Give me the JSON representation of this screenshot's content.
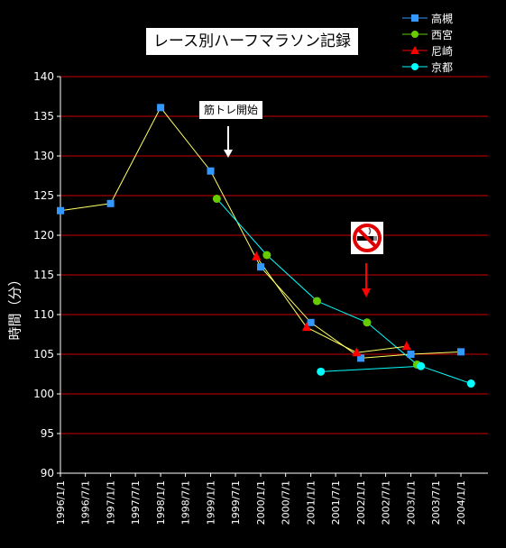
{
  "chart_data": {
    "type": "line",
    "title": "レース別ハーフマラソン記録",
    "ylabel": "時間（分）",
    "xlabel": "",
    "ylim": [
      90,
      140
    ],
    "yticks": [
      90,
      95,
      100,
      105,
      110,
      115,
      120,
      125,
      130,
      135,
      140
    ],
    "x_tick_labels": [
      "1996/1/1",
      "1996/7/1",
      "1997/1/1",
      "1997/7/1",
      "1998/1/1",
      "1998/7/1",
      "1999/1/1",
      "1999/7/1",
      "2000/1/1",
      "2000/7/1",
      "2001/1/1",
      "2001/7/1",
      "2002/1/1",
      "2002/7/1",
      "2003/1/1",
      "2003/7/1",
      "2004/1/1"
    ],
    "grid": true,
    "legend_position": "top-right",
    "series": [
      {
        "name": "高槻",
        "color": "#3399ff",
        "line_color": "#ffff66",
        "marker": "square",
        "x": [
          "1996/1/1",
          "1997/1/1",
          "1998/1/1",
          "1999/1/1",
          "2000/1/1",
          "2001/1/1",
          "2002/1/1",
          "2003/1/1",
          "2004/1/1"
        ],
        "values": [
          123.1,
          124.0,
          136.1,
          128.1,
          116.0,
          109.0,
          104.5,
          105.0,
          105.3
        ]
      },
      {
        "name": "西宮",
        "color": "#66cc00",
        "line_color": "#00ffff",
        "marker": "circle",
        "x": [
          "1999/2/15",
          "2000/2/15",
          "2001/2/15",
          "2002/2/15",
          "2003/2/15"
        ],
        "values": [
          124.6,
          117.5,
          111.7,
          109.0,
          103.7
        ]
      },
      {
        "name": "尼崎",
        "color": "#ff0000",
        "line_color": "#ffff66",
        "marker": "triangle",
        "x": [
          "1999/12/1",
          "2000/12/1",
          "2001/12/1",
          "2002/12/1"
        ],
        "values": [
          117.3,
          108.4,
          105.2,
          106.0
        ]
      },
      {
        "name": "京都",
        "color": "#00ffff",
        "line_color": "#00ffff",
        "marker": "circle",
        "x": [
          "2001/3/15",
          "2003/3/15",
          "2004/3/15"
        ],
        "values": [
          102.8,
          103.5,
          101.3
        ]
      }
    ],
    "annotations": [
      "筋トレ開始"
    ],
    "icon": "no-smoking-icon"
  }
}
